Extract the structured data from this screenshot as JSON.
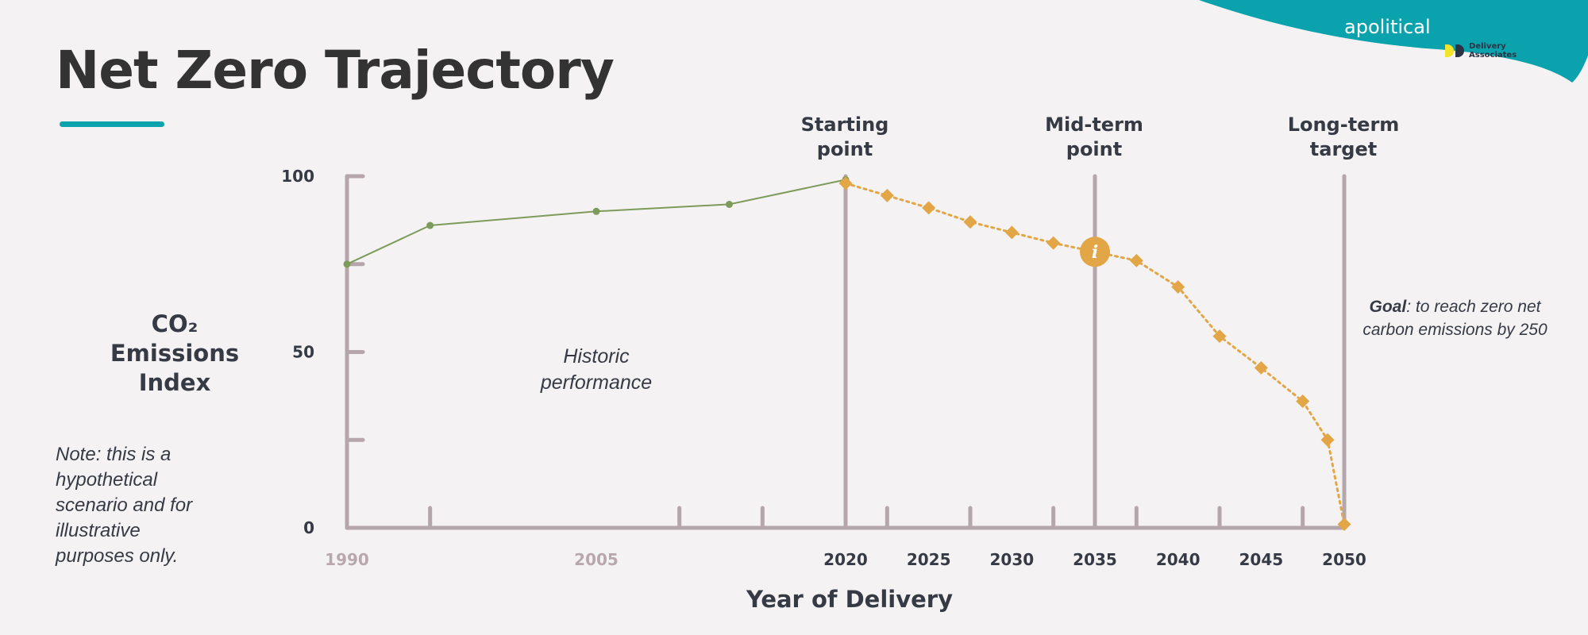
{
  "title": "Net Zero Trajectory",
  "brand": {
    "name": "apolitical",
    "partner": "Delivery Associates"
  },
  "colors": {
    "accent": "#0aa3ad",
    "axis": "#b5a6ab",
    "historic": "#7d9b5a",
    "projection": "#e3a646",
    "text": "#353a45"
  },
  "y_axis_label": {
    "line1": "CO₂",
    "line2": "Emissions",
    "line3": "Index"
  },
  "note": "Note: this is a hypothetical scenario and for illustrative purposes only.",
  "goal": {
    "bold": "Goal",
    "rest": ": to reach zero net carbon emissions by 250"
  },
  "chart_data": {
    "type": "line",
    "xlabel": "Year of Delivery",
    "ylabel": "CO₂ Emissions Index",
    "xlim": [
      1990,
      2050
    ],
    "ylim": [
      0,
      100
    ],
    "x_tick_labels": [
      {
        "x": 1990,
        "label": "1990",
        "muted": true
      },
      {
        "x": 2005,
        "label": "2005",
        "muted": true
      },
      {
        "x": 2020,
        "label": "2020",
        "muted": false
      },
      {
        "x": 2025,
        "label": "2025",
        "muted": false
      },
      {
        "x": 2030,
        "label": "2030",
        "muted": false
      },
      {
        "x": 2035,
        "label": "2035",
        "muted": false
      },
      {
        "x": 2040,
        "label": "2040",
        "muted": false
      },
      {
        "x": 2045,
        "label": "2045",
        "muted": false
      },
      {
        "x": 2050,
        "label": "2050",
        "muted": false
      }
    ],
    "x_minor_ticks": [
      1995,
      2010,
      2015,
      2022.5,
      2027.5,
      2032.5,
      2037.5,
      2042.5,
      2047.5
    ],
    "y_ticks": [
      0,
      25,
      50,
      75,
      100
    ],
    "y_tick_labels": [
      {
        "y": 0,
        "label": "0"
      },
      {
        "y": 50,
        "label": "50"
      },
      {
        "y": 100,
        "label": "100"
      }
    ],
    "markers": [
      {
        "x": 2020,
        "line1": "Starting",
        "line2": "point"
      },
      {
        "x": 2035,
        "line1": "Mid-term",
        "line2": "point"
      },
      {
        "x": 2050,
        "line1": "Long-term",
        "line2": "target"
      }
    ],
    "annotation": {
      "x": 2005,
      "y": 47,
      "line1": "Historic",
      "line2": "performance"
    },
    "info_marker": {
      "x": 2035,
      "y": 78.5,
      "symbol": "i"
    },
    "series": [
      {
        "style": "solid",
        "color": "#7d9b5a",
        "marker": "circle",
        "points": [
          [
            1990,
            75
          ],
          [
            1995,
            86
          ],
          [
            2005,
            90
          ],
          [
            2013,
            92
          ],
          [
            2020,
            99
          ]
        ]
      },
      {
        "style": "dotted",
        "color": "#e3a646",
        "marker": "diamond",
        "points": [
          [
            2020,
            98
          ],
          [
            2022.5,
            94.5
          ],
          [
            2025,
            91
          ],
          [
            2027.5,
            87
          ],
          [
            2030,
            84
          ],
          [
            2032.5,
            81
          ],
          [
            2035,
            78.5
          ],
          [
            2037.5,
            76
          ],
          [
            2040,
            68.5
          ],
          [
            2042.5,
            54.5
          ],
          [
            2045,
            45.5
          ],
          [
            2047.5,
            36
          ],
          [
            2049,
            25
          ],
          [
            2050,
            1
          ]
        ]
      }
    ]
  }
}
